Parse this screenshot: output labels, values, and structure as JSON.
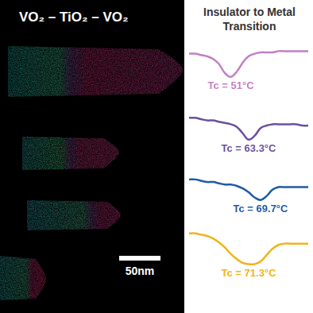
{
  "panel": {
    "title": "VO₂ – TiO₂ – VO₂",
    "scale_bar": "50nm"
  },
  "chart_data": {
    "type": "line",
    "title": "Insulator to Metal Transition",
    "x": [
      0,
      5,
      10,
      15,
      20,
      25,
      30,
      35,
      40,
      45,
      50,
      55,
      60,
      65,
      70,
      75,
      80,
      85,
      90,
      95,
      100
    ],
    "xlim": [
      0,
      100
    ],
    "ylim": [
      0,
      100
    ],
    "tick_labels": false,
    "grid": false,
    "series": [
      {
        "name": "Tc = 51°C",
        "color": "#c27fc6",
        "values": [
          93,
          93,
          92.5,
          92,
          91,
          89,
          85.5,
          84,
          86,
          89.5,
          92,
          93,
          93.5,
          93.5,
          93.5,
          94,
          94,
          94,
          94,
          94,
          94
        ]
      },
      {
        "name": "Tc = 63.3°C",
        "color": "#6b4fa0",
        "values": [
          68,
          68,
          67.5,
          67,
          67,
          66.5,
          66,
          65.5,
          64.5,
          62,
          59.5,
          61,
          64,
          65,
          65.5,
          65.5,
          65.5,
          65.5,
          65.5,
          65,
          65
        ]
      },
      {
        "name": "Tc = 69.7°C",
        "color": "#1f5aa6",
        "values": [
          44,
          44,
          43.5,
          43,
          43,
          42.5,
          42,
          42,
          41.5,
          40.5,
          39,
          37,
          36,
          37.5,
          40,
          41,
          41,
          41,
          41,
          41,
          41
        ]
      },
      {
        "name": "Tc = 71.3°C",
        "color": "#f2b318",
        "values": [
          23,
          23,
          22.5,
          22,
          21,
          19.5,
          17.5,
          15,
          13,
          11.5,
          11,
          11,
          12,
          14.5,
          17,
          18.5,
          19,
          19,
          19,
          19,
          19
        ]
      }
    ]
  }
}
